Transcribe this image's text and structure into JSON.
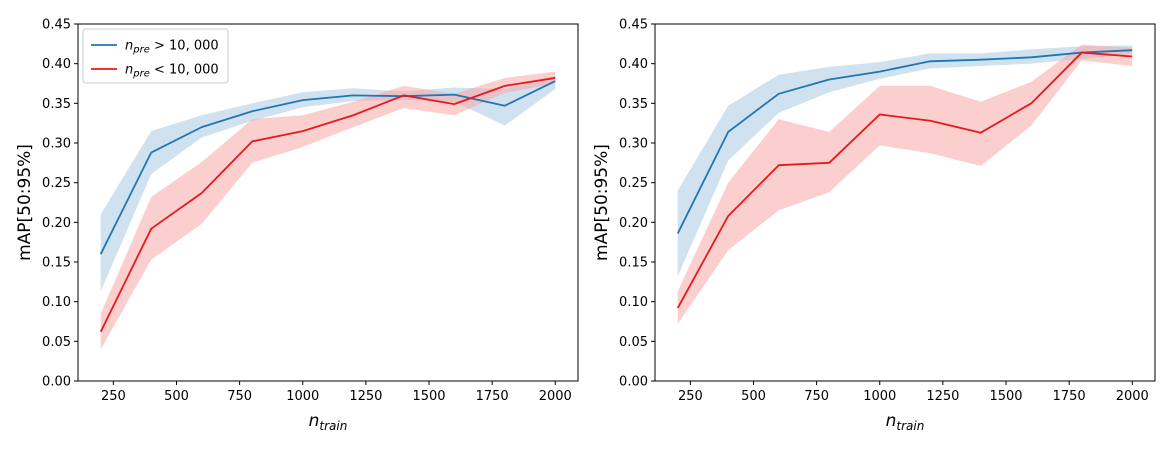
{
  "chart_data": [
    {
      "type": "line",
      "xlabel": "n",
      "xlabel_sub": "train",
      "ylabel": "mAP[50:95%]",
      "xlim": [
        110,
        2090
      ],
      "ylim": [
        0.0,
        0.45
      ],
      "xticks": [
        250,
        500,
        750,
        1000,
        1250,
        1500,
        1750,
        2000
      ],
      "yticks": [
        0.0,
        0.05,
        0.1,
        0.15,
        0.2,
        0.25,
        0.3,
        0.35,
        0.4,
        0.45
      ],
      "grid": false,
      "legend": {
        "placement": "top-left",
        "entries": [
          {
            "var": "n",
            "sub": "pre",
            "rest": " > 10, 000",
            "color": "#1f77b4"
          },
          {
            "var": "n",
            "sub": "pre",
            "rest": " < 10, 000",
            "color": "#e41a1c"
          }
        ]
      },
      "x": [
        200,
        400,
        600,
        800,
        1000,
        1200,
        1400,
        1600,
        1800,
        2000
      ],
      "series": [
        {
          "color": "#1f77b4",
          "band_color": "#a9c9e2",
          "values": [
            0.16,
            0.288,
            0.32,
            0.34,
            0.354,
            0.36,
            0.359,
            0.361,
            0.347,
            0.378
          ],
          "lower": [
            0.113,
            0.261,
            0.307,
            0.328,
            0.345,
            0.353,
            0.354,
            0.352,
            0.322,
            0.368
          ],
          "upper": [
            0.21,
            0.315,
            0.335,
            0.35,
            0.364,
            0.369,
            0.365,
            0.37,
            0.368,
            0.385
          ]
        },
        {
          "color": "#e41a1c",
          "band_color": "#f9a8a8",
          "values": [
            0.062,
            0.192,
            0.237,
            0.302,
            0.315,
            0.335,
            0.36,
            0.349,
            0.372,
            0.382
          ],
          "lower": [
            0.04,
            0.153,
            0.198,
            0.275,
            0.295,
            0.32,
            0.344,
            0.335,
            0.363,
            0.375
          ],
          "upper": [
            0.085,
            0.232,
            0.276,
            0.33,
            0.335,
            0.352,
            0.372,
            0.362,
            0.382,
            0.39
          ]
        }
      ]
    },
    {
      "type": "line",
      "xlabel": "n",
      "xlabel_sub": "train",
      "ylabel": "mAP[50:95%]",
      "xlim": [
        110,
        2090
      ],
      "ylim": [
        0.0,
        0.45
      ],
      "xticks": [
        250,
        500,
        750,
        1000,
        1250,
        1500,
        1750,
        2000
      ],
      "yticks": [
        0.0,
        0.05,
        0.1,
        0.15,
        0.2,
        0.25,
        0.3,
        0.35,
        0.4,
        0.45
      ],
      "grid": false,
      "x": [
        200,
        400,
        600,
        800,
        1000,
        1200,
        1400,
        1600,
        1800,
        2000
      ],
      "series": [
        {
          "color": "#1f77b4",
          "band_color": "#a9c9e2",
          "values": [
            0.186,
            0.314,
            0.362,
            0.38,
            0.39,
            0.403,
            0.405,
            0.408,
            0.414,
            0.417
          ],
          "lower": [
            0.132,
            0.278,
            0.338,
            0.364,
            0.381,
            0.394,
            0.397,
            0.4,
            0.406,
            0.412
          ],
          "upper": [
            0.24,
            0.347,
            0.386,
            0.396,
            0.402,
            0.413,
            0.413,
            0.418,
            0.422,
            0.423
          ]
        },
        {
          "color": "#e41a1c",
          "band_color": "#f9a8a8",
          "values": [
            0.092,
            0.208,
            0.272,
            0.275,
            0.336,
            0.328,
            0.313,
            0.35,
            0.414,
            0.409
          ],
          "lower": [
            0.072,
            0.165,
            0.215,
            0.238,
            0.297,
            0.287,
            0.271,
            0.322,
            0.404,
            0.397
          ],
          "upper": [
            0.113,
            0.25,
            0.33,
            0.314,
            0.372,
            0.372,
            0.352,
            0.377,
            0.424,
            0.42
          ]
        }
      ]
    }
  ]
}
